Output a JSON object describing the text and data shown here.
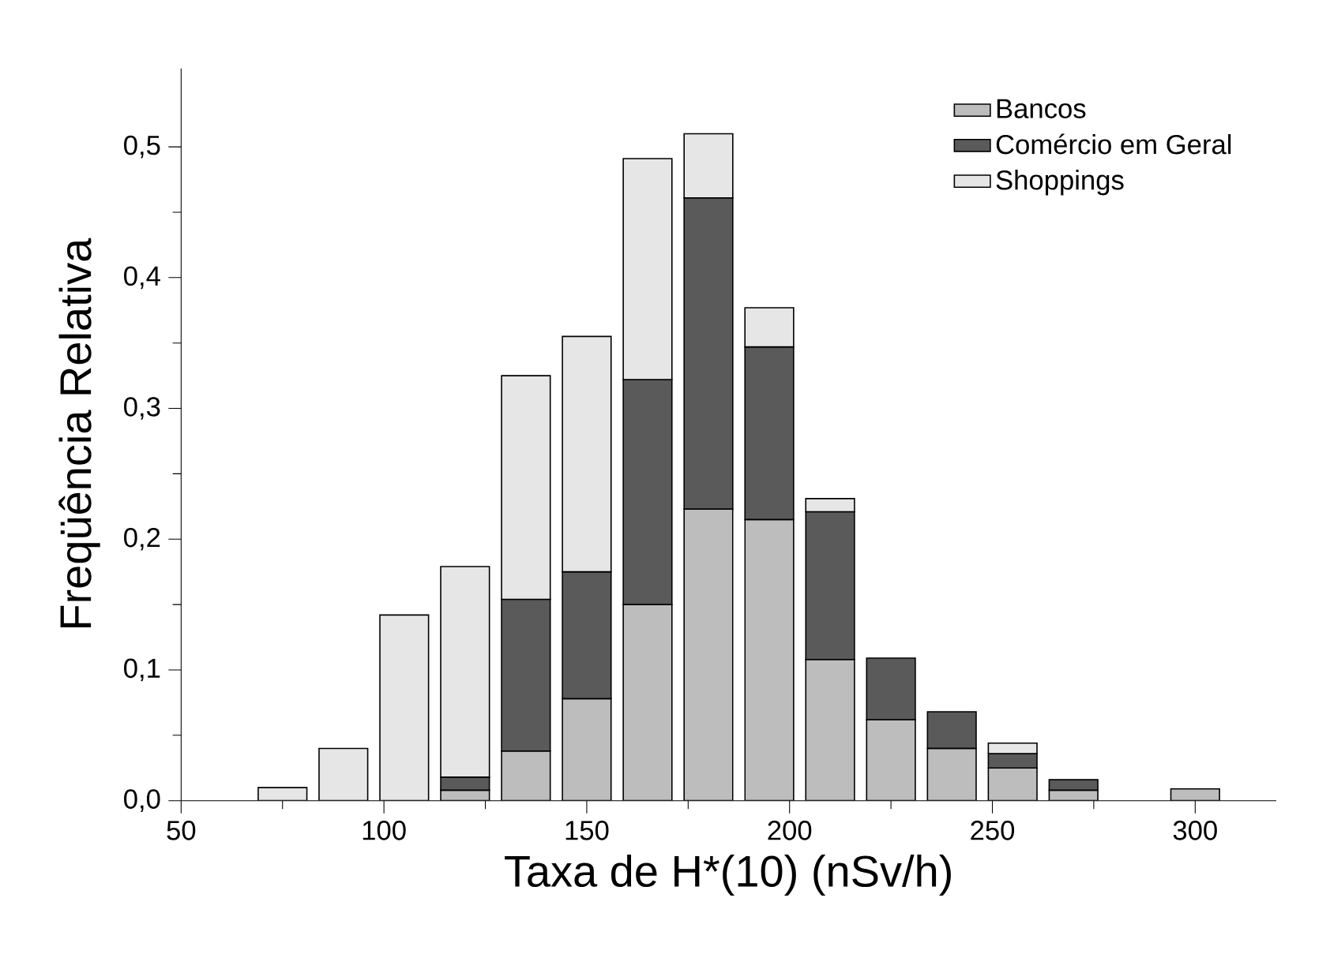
{
  "chart_data": {
    "type": "bar",
    "stacked": true,
    "xlabel": "Taxa de H*(10) (nSv/h)",
    "ylabel": "Freqüência Relativa",
    "x": [
      75,
      90,
      105,
      120,
      135,
      150,
      165,
      180,
      195,
      210,
      225,
      240,
      255,
      270,
      285,
      300
    ],
    "series": [
      {
        "name": "Bancos",
        "color": "#bdbdbd",
        "values": [
          null,
          null,
          null,
          0.008,
          0.038,
          0.078,
          0.15,
          0.223,
          0.215,
          0.108,
          0.062,
          0.04,
          0.025,
          0.008,
          null,
          0.009
        ]
      },
      {
        "name": "Comércio em Geral",
        "color": "#5a5a5a",
        "values": [
          null,
          null,
          null,
          0.01,
          0.116,
          0.097,
          0.172,
          0.238,
          0.132,
          0.113,
          0.047,
          0.028,
          0.011,
          0.008,
          null,
          null
        ]
      },
      {
        "name": "Shoppings",
        "color": "#e6e6e6",
        "values": [
          0.01,
          0.04,
          0.142,
          0.161,
          0.171,
          0.18,
          0.169,
          0.049,
          0.03,
          0.01,
          null,
          null,
          0.008,
          null,
          null,
          null
        ]
      }
    ],
    "xlim": [
      50,
      320
    ],
    "ylim": [
      0,
      0.56
    ],
    "xticks": [
      50,
      100,
      150,
      200,
      250,
      300
    ],
    "yticks": [
      {
        "value": 0,
        "label": "0,0"
      },
      {
        "value": 0.1,
        "label": "0,1"
      },
      {
        "value": 0.2,
        "label": "0,2"
      },
      {
        "value": 0.3,
        "label": "0,3"
      },
      {
        "value": 0.4,
        "label": "0,4"
      },
      {
        "value": 0.5,
        "label": "0,5"
      }
    ],
    "legend": "top right",
    "grid": false
  }
}
